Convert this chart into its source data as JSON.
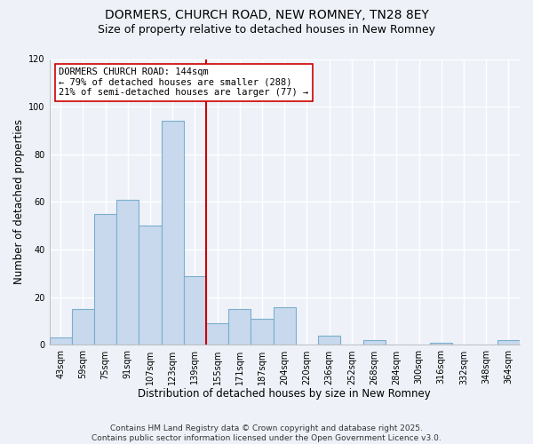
{
  "title": "DORMERS, CHURCH ROAD, NEW ROMNEY, TN28 8EY",
  "subtitle": "Size of property relative to detached houses in New Romney",
  "xlabel": "Distribution of detached houses by size in New Romney",
  "ylabel": "Number of detached properties",
  "bin_labels": [
    "43sqm",
    "59sqm",
    "75sqm",
    "91sqm",
    "107sqm",
    "123sqm",
    "139sqm",
    "155sqm",
    "171sqm",
    "187sqm",
    "204sqm",
    "220sqm",
    "236sqm",
    "252sqm",
    "268sqm",
    "284sqm",
    "300sqm",
    "316sqm",
    "332sqm",
    "348sqm",
    "364sqm"
  ],
  "bar_heights": [
    3,
    15,
    55,
    61,
    50,
    94,
    29,
    9,
    15,
    11,
    16,
    0,
    4,
    0,
    2,
    0,
    0,
    1,
    0,
    0,
    2
  ],
  "bar_color": "#c8d9ed",
  "bar_edge_color": "#7aaecc",
  "marker_line_index": 6.5,
  "marker_label": "DORMERS CHURCH ROAD: 144sqm",
  "annotation_line1": "← 79% of detached houses are smaller (288)",
  "annotation_line2": "21% of semi-detached houses are larger (77) →",
  "ylim": [
    0,
    120
  ],
  "yticks": [
    0,
    20,
    40,
    60,
    80,
    100,
    120
  ],
  "marker_line_color": "#cc0000",
  "annotation_box_color": "#ffffff",
  "annotation_box_edge": "#cc0000",
  "footer1": "Contains HM Land Registry data © Crown copyright and database right 2025.",
  "footer2": "Contains public sector information licensed under the Open Government Licence v3.0.",
  "bg_color": "#eef2f8",
  "grid_color": "#ffffff",
  "title_fontsize": 10,
  "subtitle_fontsize": 9,
  "axis_label_fontsize": 8.5,
  "tick_fontsize": 7,
  "annotation_fontsize": 7.5,
  "footer_fontsize": 6.5
}
